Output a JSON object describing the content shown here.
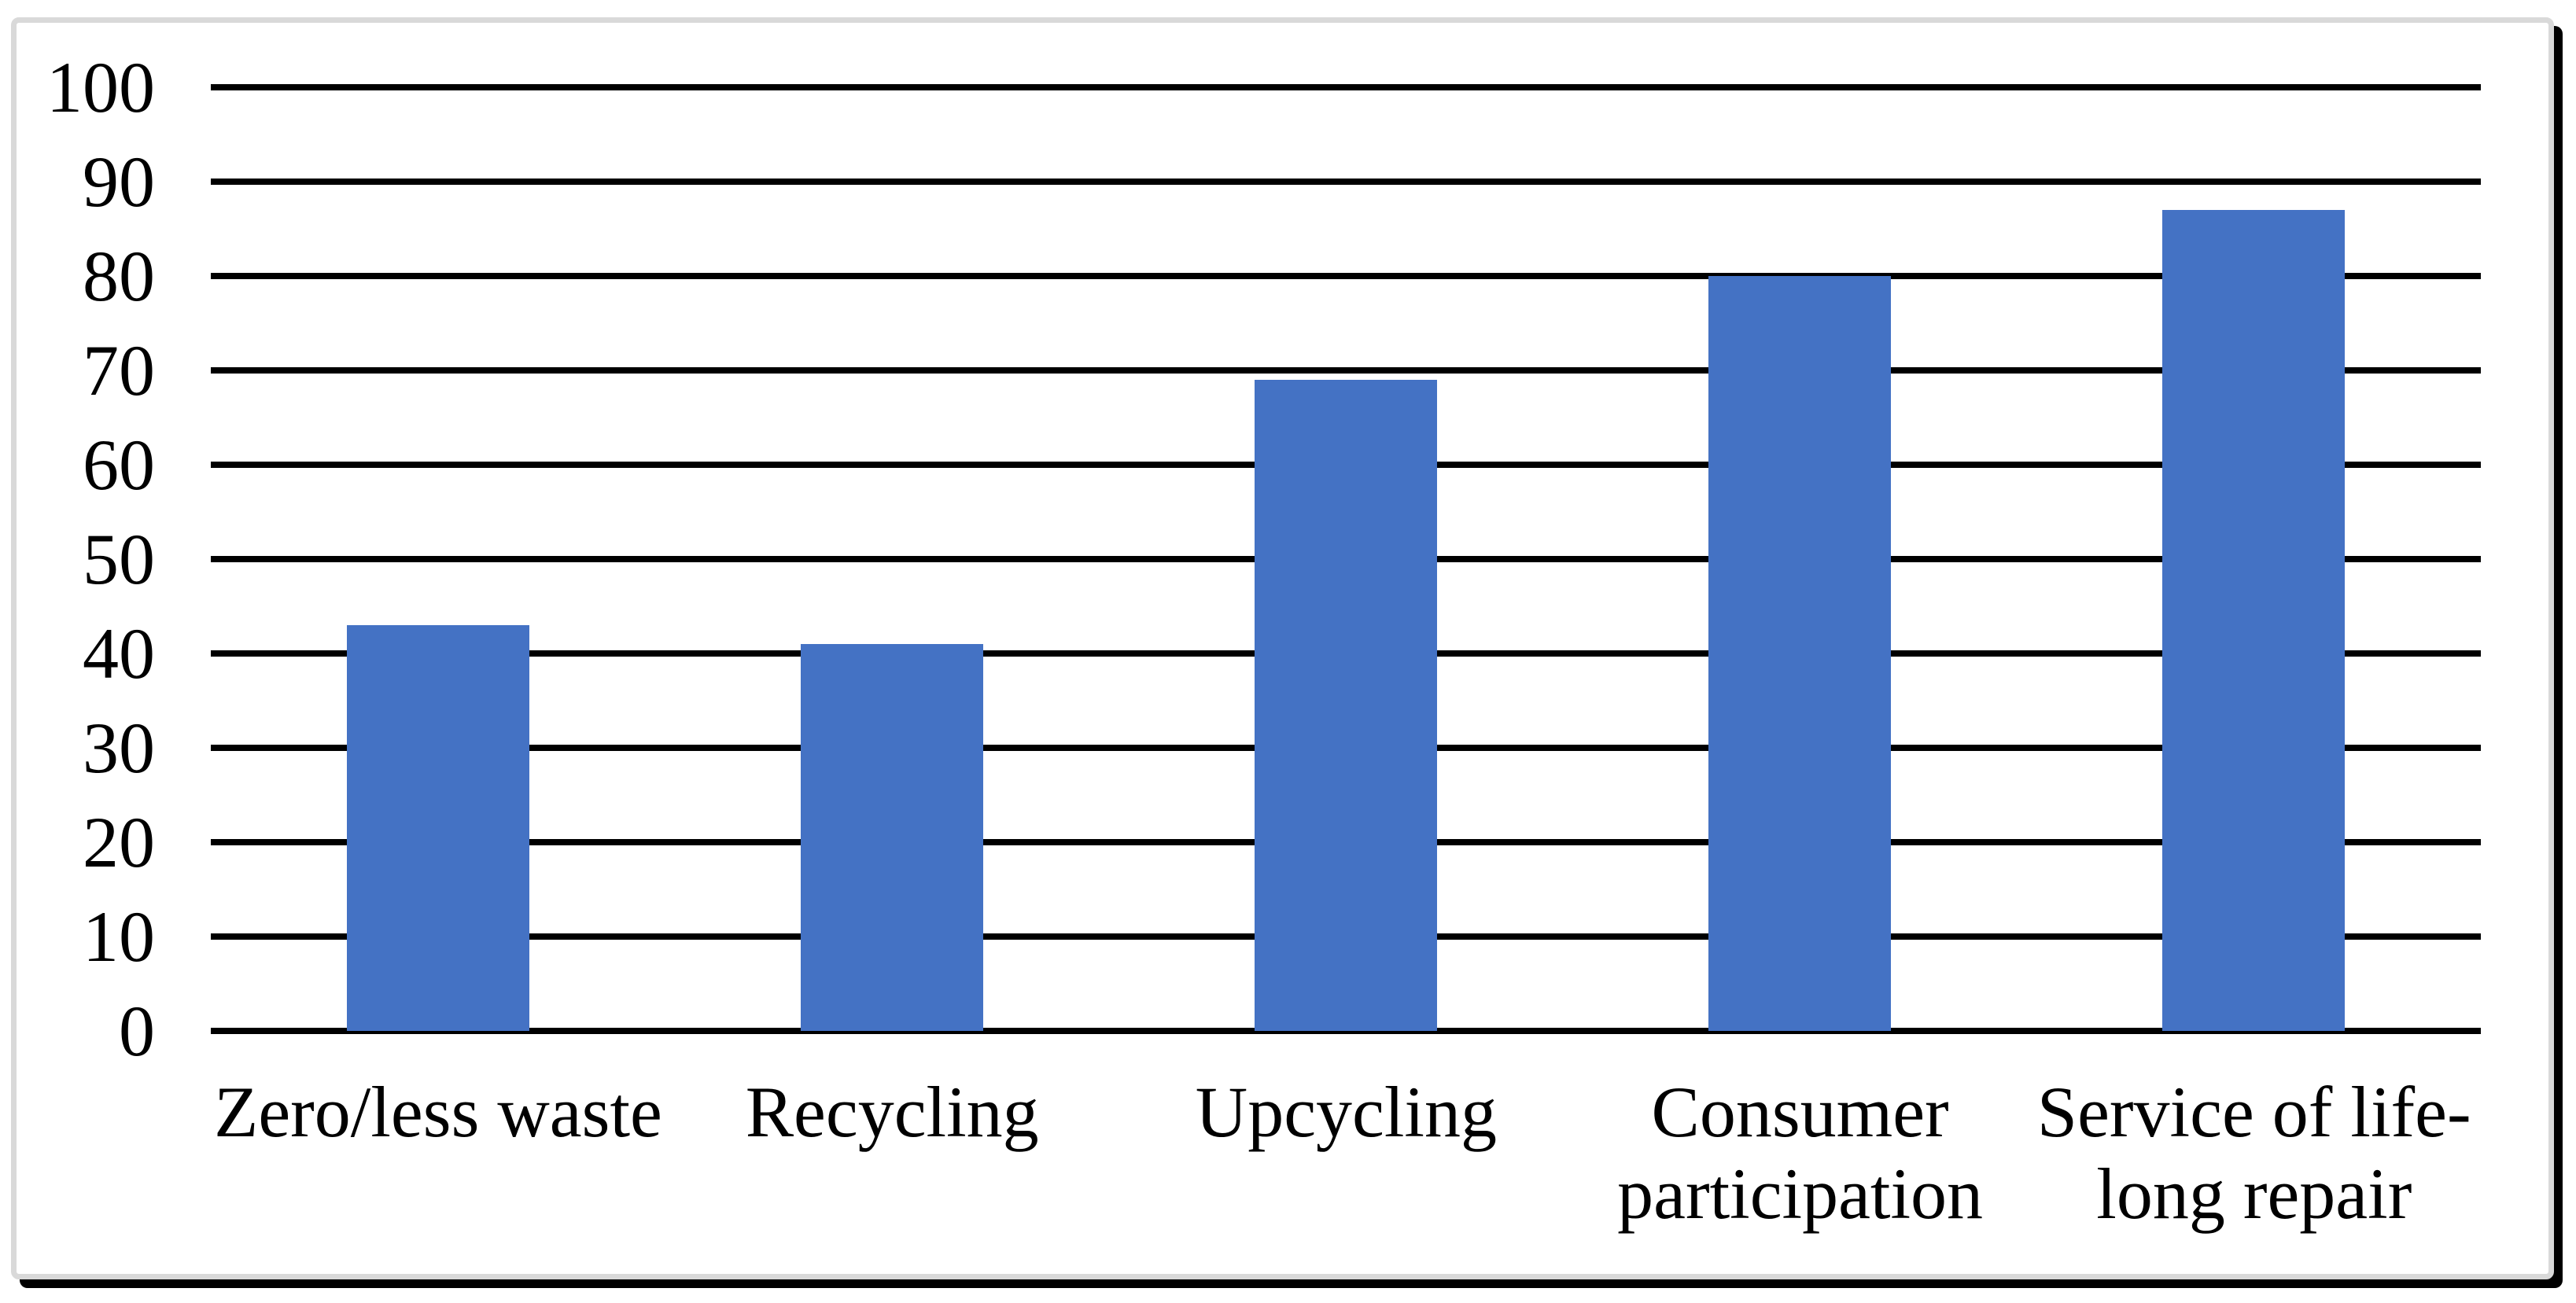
{
  "chart_data": {
    "type": "bar",
    "title": "",
    "xlabel": "",
    "ylabel": "",
    "categories": [
      "Zero/less waste",
      "Recycling",
      "Upcycling",
      "Consumer participation",
      "Service of life-long repair"
    ],
    "display_labels": [
      "Zero/less waste",
      "Recycling",
      "Upcycling",
      "Consumer\nparticipation",
      "Service of life-\nlong repair"
    ],
    "values": [
      43,
      41,
      69,
      80,
      87
    ],
    "ylim": [
      0,
      100
    ],
    "ytick_interval": 10,
    "yticks": [
      "100",
      "90",
      "80",
      "70",
      "60",
      "50",
      "40",
      "30",
      "20",
      "10",
      "0"
    ],
    "grid": "horizontal",
    "legend_position": "none",
    "bar_color": "#4472C4",
    "gridline_color": "#000000",
    "text_color": "#000000"
  },
  "frame": {
    "background": "#FFFFFF",
    "border_color": "#D9D9D9",
    "shadow_color": "#000000"
  }
}
